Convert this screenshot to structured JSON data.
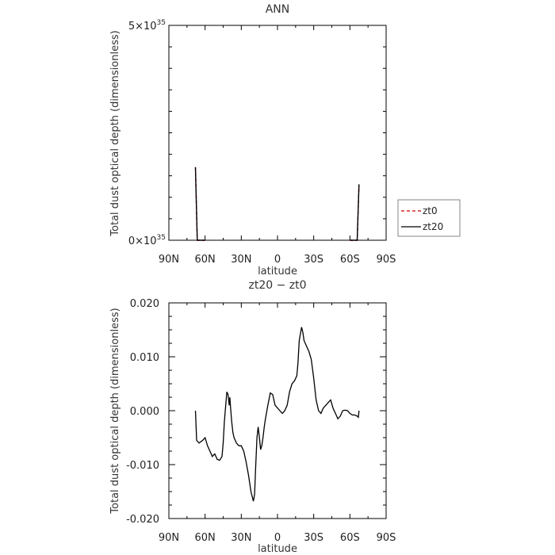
{
  "chart_data": [
    {
      "type": "line",
      "title": "ANN",
      "xlabel": "latitude",
      "ylabel": "Total dust optical depth (dimensionless)",
      "x_ticks": [
        "90N",
        "60N",
        "30N",
        "0",
        "30S",
        "60S",
        "90S"
      ],
      "x_tick_values": [
        90,
        60,
        30,
        0,
        -30,
        -60,
        -90
      ],
      "xlim": [
        90,
        -90
      ],
      "y_tick_labels": [
        {
          "mantissa": "0",
          "exponent": "35"
        },
        {
          "mantissa": "5",
          "exponent": "35"
        }
      ],
      "ylim": [
        0,
        5e+35
      ],
      "legend_position": "right",
      "series": [
        {
          "name": "zt0",
          "color": "#cc0000",
          "dash": true,
          "x": [
            68,
            66.5,
            64,
            62,
            60,
            -60,
            -62,
            -64,
            -66,
            -67.5
          ],
          "y": [
            1.7e+35,
            0,
            0,
            0,
            0,
            0,
            0,
            0,
            0,
            1.3e+35
          ]
        },
        {
          "name": "zt20",
          "color": "#000000",
          "dash": false,
          "x": [
            68,
            66.5,
            64,
            62,
            60,
            -60,
            -62,
            -64,
            -66,
            -67.5
          ],
          "y": [
            1.7e+35,
            0,
            0,
            0,
            0,
            0,
            0,
            0,
            0,
            1.3e+35
          ]
        }
      ]
    },
    {
      "type": "line",
      "title": "zt20 − zt0",
      "xlabel": "latitude",
      "ylabel": "Total dust optical depth (dimensionless)",
      "x_ticks": [
        "90N",
        "60N",
        "30N",
        "0",
        "30S",
        "60S",
        "90S"
      ],
      "x_tick_values": [
        90,
        60,
        30,
        0,
        -30,
        -60,
        -90
      ],
      "xlim": [
        90,
        -90
      ],
      "y_ticks": [
        "-0.020",
        "-0.010",
        "0.000",
        "0.010",
        "0.020"
      ],
      "y_tick_values": [
        -0.02,
        -0.01,
        0.0,
        0.01,
        0.02
      ],
      "ylim": [
        -0.02,
        0.02
      ],
      "series": [
        {
          "name": "",
          "color": "#000000",
          "x": [
            68,
            67.8,
            67,
            65,
            62,
            60,
            58,
            56,
            54,
            52,
            50,
            48,
            46,
            45,
            44,
            42,
            41,
            40,
            39.5,
            39,
            38,
            37,
            36,
            35,
            34,
            32,
            30,
            28,
            26,
            24,
            22,
            20,
            19,
            18,
            17,
            16,
            15,
            14,
            13,
            12,
            11,
            10,
            8,
            6,
            4,
            2,
            0,
            -2,
            -4,
            -6,
            -8,
            -10,
            -12,
            -14,
            -16,
            -17,
            -18,
            -20,
            -21,
            -22,
            -24,
            -26,
            -28,
            -30,
            -32,
            -34,
            -36,
            -38,
            -40,
            -42,
            -44,
            -46,
            -48,
            -50,
            -52,
            -54,
            -56,
            -58,
            -60,
            -62,
            -64,
            -66,
            -67,
            -67.5
          ],
          "y": [
            0.0,
            -0.001,
            -0.0055,
            -0.006,
            -0.0055,
            -0.005,
            -0.0065,
            -0.0075,
            -0.0085,
            -0.008,
            -0.009,
            -0.0092,
            -0.0085,
            -0.006,
            -0.002,
            0.0035,
            0.003,
            0.001,
            0.0025,
            0.001,
            -0.002,
            -0.004,
            -0.005,
            -0.0055,
            -0.006,
            -0.0065,
            -0.0065,
            -0.0075,
            -0.0095,
            -0.012,
            -0.015,
            -0.0168,
            -0.0155,
            -0.01,
            -0.005,
            -0.003,
            -0.005,
            -0.0072,
            -0.0065,
            -0.005,
            -0.003,
            -0.0015,
            0.001,
            0.0033,
            0.003,
            0.001,
            0.0005,
            0.0,
            -0.0005,
            0.0,
            0.001,
            0.0035,
            0.005,
            0.0055,
            0.0065,
            0.009,
            0.013,
            0.0155,
            0.0145,
            0.013,
            0.012,
            0.011,
            0.0095,
            0.006,
            0.002,
            0.0,
            -0.0005,
            0.0005,
            0.001,
            0.0015,
            0.002,
            0.0005,
            -0.0005,
            -0.0015,
            -0.001,
            0.0,
            0.0001,
            0.0,
            -0.0005,
            -0.0008,
            -0.0008,
            -0.001,
            -0.0012,
            0.0
          ]
        }
      ]
    }
  ]
}
